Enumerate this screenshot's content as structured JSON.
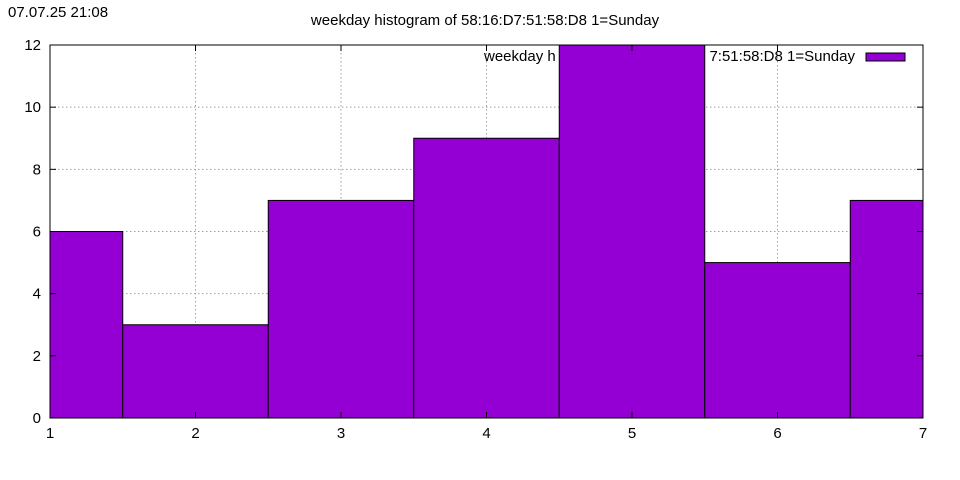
{
  "timestamp": "07.07.25 21:08",
  "chart_data": {
    "type": "bar",
    "title": "weekday histogram of 58:16:D7:51:58:D8 1=Sunday",
    "xlabel": "",
    "ylabel": "",
    "categories": [
      1,
      2,
      3,
      4,
      5,
      6,
      7
    ],
    "series": [
      {
        "name": "weekday histogram of 58:16:D7:51:58:D8 1=Sunday",
        "values": [
          6,
          3,
          7,
          9,
          12,
          5,
          7
        ]
      }
    ],
    "xlim": [
      1,
      7
    ],
    "ylim": [
      0,
      12
    ],
    "xticks": [
      "1",
      "2",
      "3",
      "4",
      "5",
      "6",
      "7"
    ],
    "yticks": [
      "0",
      "2",
      "4",
      "6",
      "8",
      "10",
      "12"
    ],
    "grid": true,
    "legend_position": "top-right",
    "bar_color": "#9400d3",
    "legend_label_visible": "weekday h",
    "legend_label_tail": "7:51:58:D8 1=Sunday"
  }
}
